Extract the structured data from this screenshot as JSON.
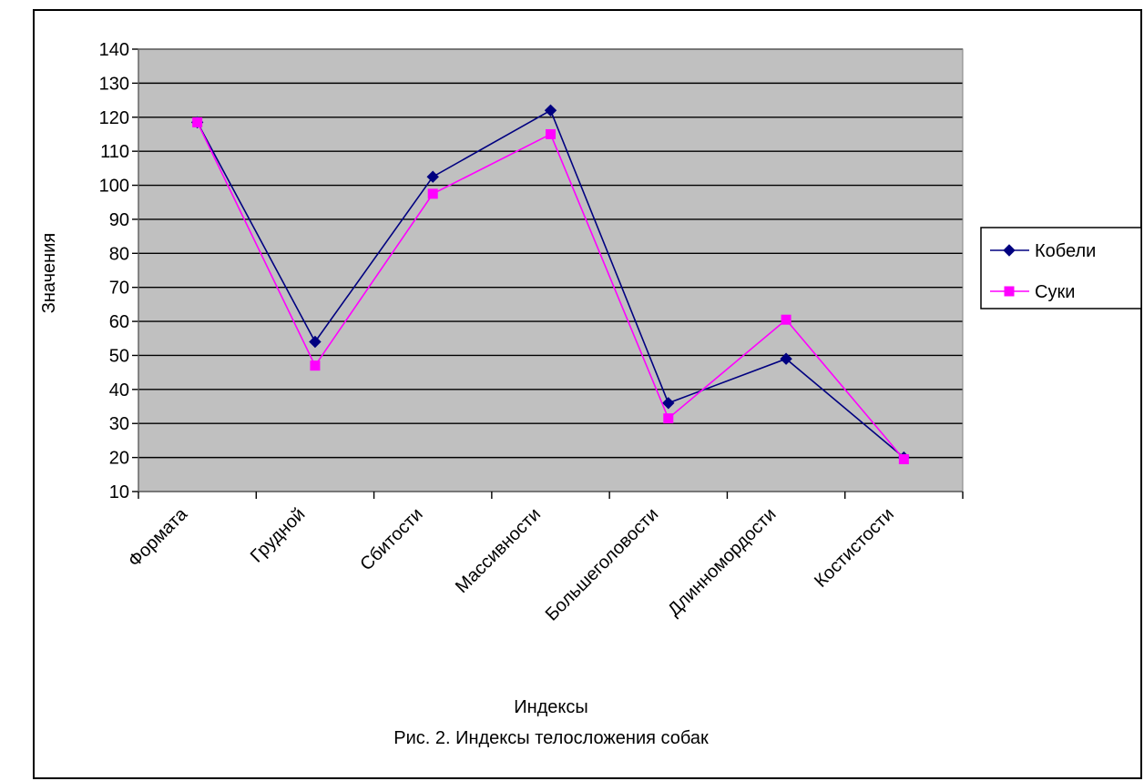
{
  "chart_data": {
    "type": "line",
    "title": "Рис. 2. Индексы телосложения собак",
    "xlabel": "Индексы",
    "ylabel": "Значения",
    "ylim": [
      10,
      140
    ],
    "yticks": [
      10,
      20,
      30,
      40,
      50,
      60,
      70,
      80,
      90,
      100,
      110,
      120,
      130,
      140
    ],
    "grid": true,
    "legend_position": "right",
    "plot_background": "#c0c0c0",
    "categories": [
      "Формата",
      "Грудной",
      "Сбитости",
      "Массивности",
      "Большеголовости",
      "Длинномордости",
      "Костистости"
    ],
    "series": [
      {
        "name": "Кобели",
        "values": [
          118.5,
          54,
          102.5,
          122,
          36,
          49,
          20
        ],
        "color": "#000080",
        "marker": "diamond"
      },
      {
        "name": "Суки",
        "values": [
          118.5,
          47,
          97.5,
          115,
          31.5,
          60.5,
          19.5
        ],
        "color": "#ff00ff",
        "marker": "square"
      }
    ]
  }
}
